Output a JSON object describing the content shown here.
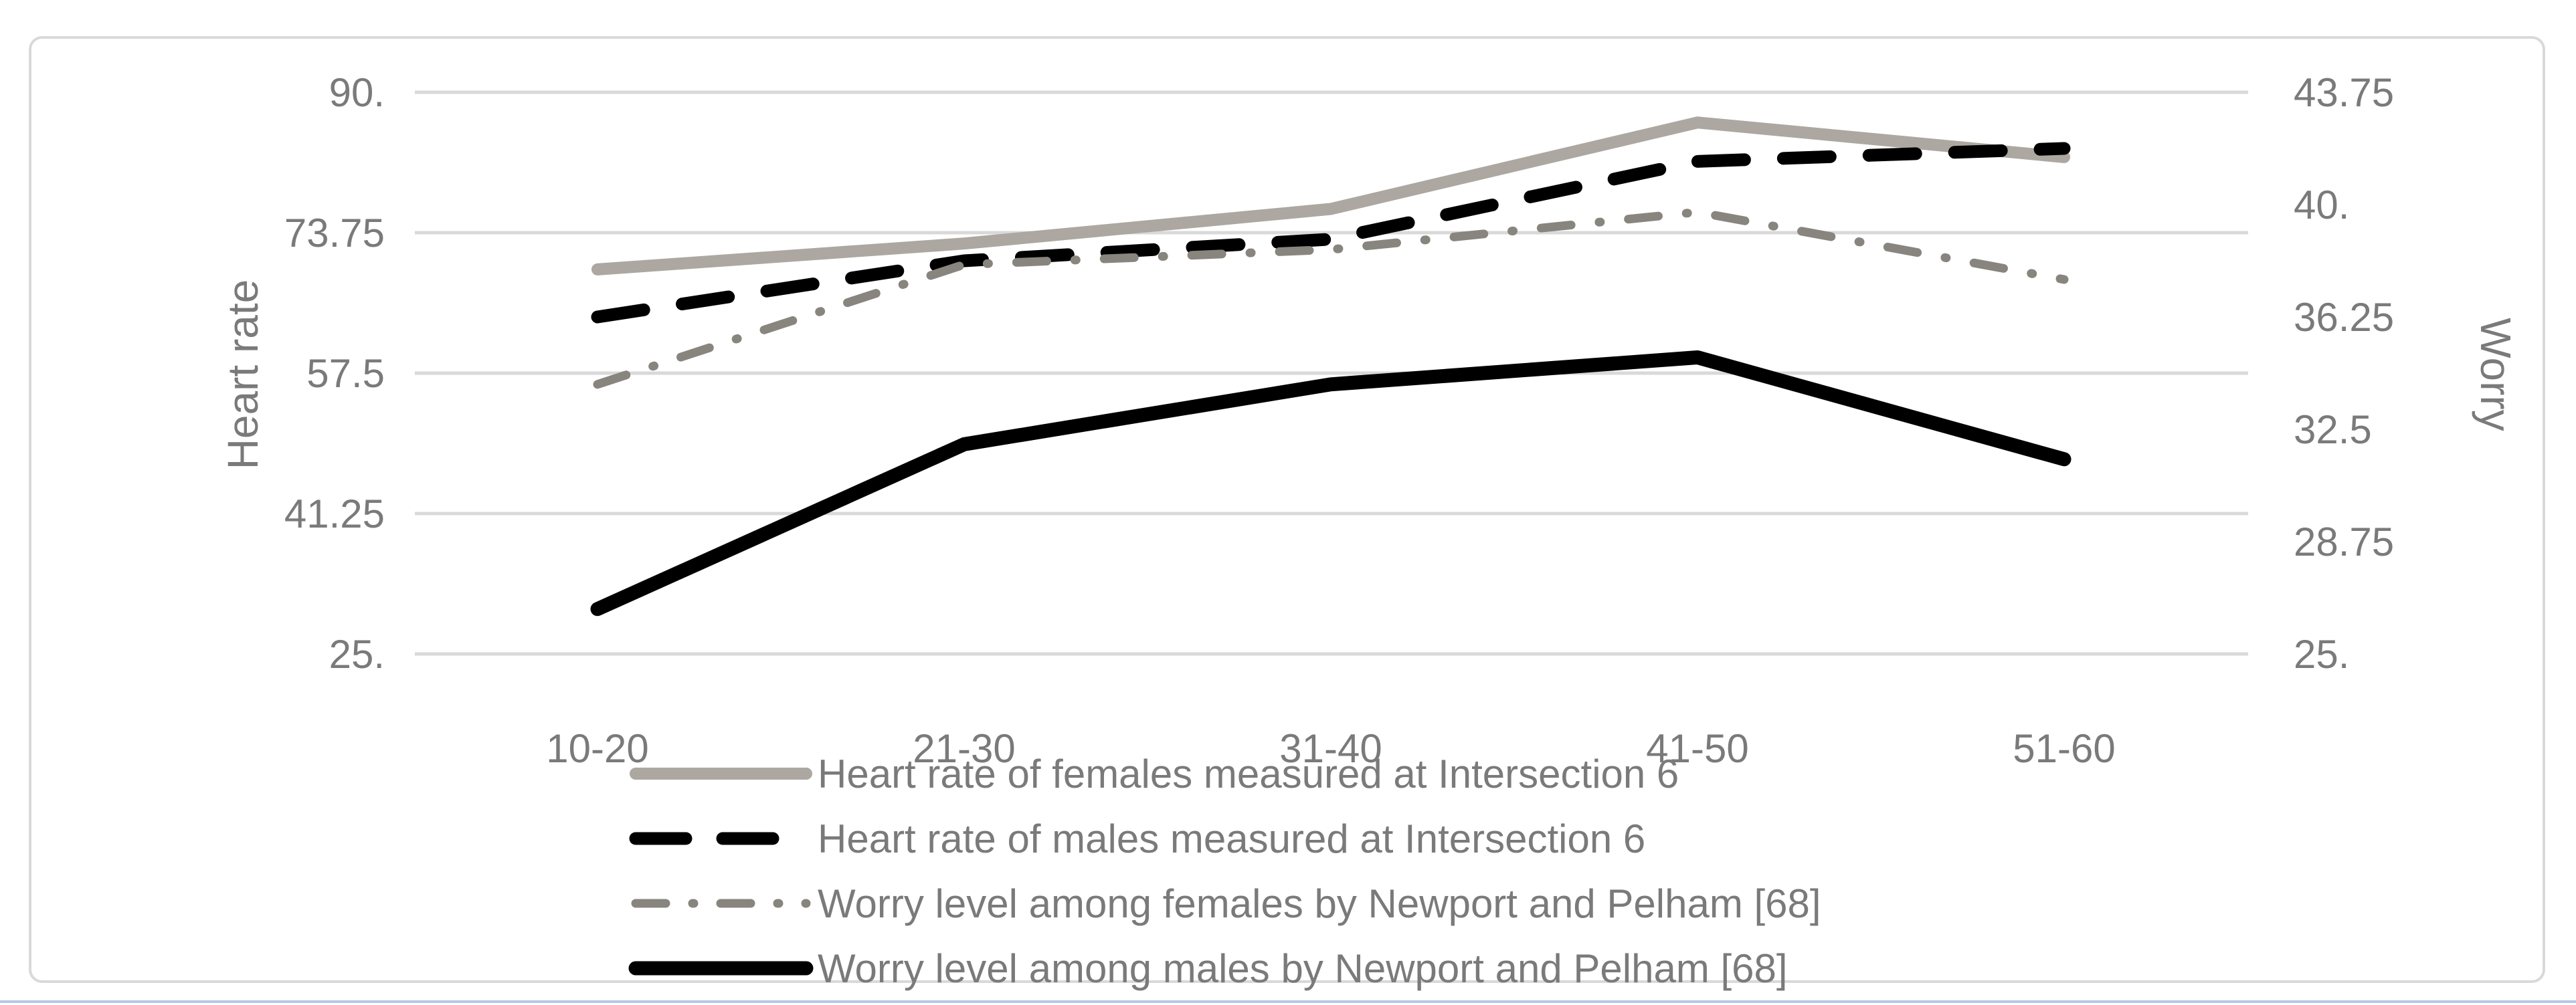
{
  "chart_data": {
    "type": "line",
    "categories": [
      "10-20",
      "21-30",
      "31-40",
      "41-50",
      "51-60"
    ],
    "series": [
      {
        "name": "Heart rate of females measured at Intersection 6",
        "axis": "left",
        "line_style": "solid",
        "color": "#ACA7A1",
        "stroke_width": 18,
        "values": [
          69.5,
          72.5,
          76.5,
          86.5,
          82.5
        ]
      },
      {
        "name": "Heart rate of males measured at Intersection 6",
        "axis": "left",
        "line_style": "dashed",
        "color": "#000000",
        "stroke_width": 19,
        "values": [
          64,
          70.5,
          73,
          82,
          83.5
        ]
      },
      {
        "name": "Worry level among females by Newport and Pelham [68]",
        "axis": "right",
        "line_style": "dashdot",
        "color": "#88857F",
        "stroke_width": 13,
        "values": [
          34,
          38,
          38.5,
          39.75,
          37.5
        ]
      },
      {
        "name": "Worry level among males by Newport and Pelham [68]",
        "axis": "right",
        "line_style": "solid",
        "color": "#000000",
        "stroke_width": 21,
        "values": [
          26.5,
          32,
          34,
          34.9,
          31.5
        ]
      }
    ],
    "left_axis": {
      "title": "Heart rate",
      "tick_labels": [
        "90.",
        "73.75",
        "57.5",
        "41.25",
        "25."
      ],
      "tick_values": [
        90,
        73.75,
        57.5,
        41.25,
        25
      ],
      "min": 25,
      "max": 90
    },
    "right_axis": {
      "title": "Worry",
      "tick_labels": [
        "43.75",
        "40.",
        "36.25",
        "32.5",
        "28.75",
        "25."
      ],
      "tick_values": [
        43.75,
        40,
        36.25,
        32.5,
        28.75,
        25
      ],
      "min": 25,
      "max": 43.75
    },
    "grid": true,
    "legend_position": "bottom"
  },
  "colors": {
    "gridline": "#D9D9D9",
    "chart_border": "#D9D9D9",
    "axis_text": "#7A7A7A",
    "legend_text": "#7A7A7A",
    "window_edge": "#B3C9E4",
    "background": "#FFFFFF"
  }
}
